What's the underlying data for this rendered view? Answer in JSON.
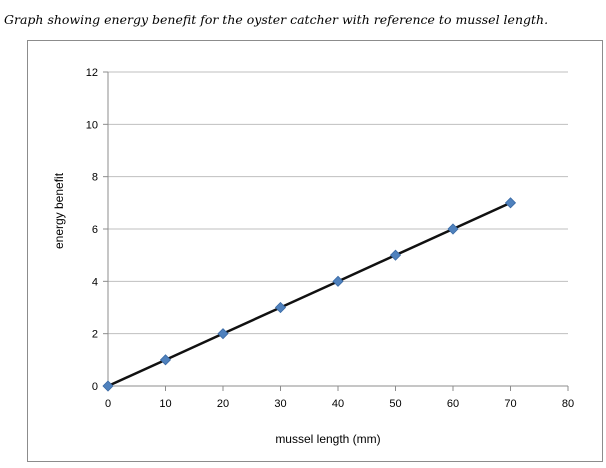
{
  "caption": "Graph showing energy benefit for the oyster catcher with reference to mussel length.",
  "chart_data": {
    "type": "line",
    "title": "",
    "xlabel": "mussel length (mm)",
    "ylabel": "energy benefit",
    "xlim": [
      0,
      80
    ],
    "ylim": [
      0,
      12
    ],
    "xticks": [
      0,
      10,
      20,
      30,
      40,
      50,
      60,
      70,
      80
    ],
    "yticks": [
      0,
      2,
      4,
      6,
      8,
      10,
      12
    ],
    "grid": "horizontal",
    "legend": "none",
    "series": [
      {
        "name": "",
        "color": "#111111",
        "marker_color": "#4f81bd",
        "marker": "diamond",
        "x": [
          0,
          10,
          20,
          30,
          40,
          50,
          60,
          70
        ],
        "y": [
          0,
          1,
          2,
          3,
          4,
          5,
          6,
          7
        ]
      }
    ]
  }
}
